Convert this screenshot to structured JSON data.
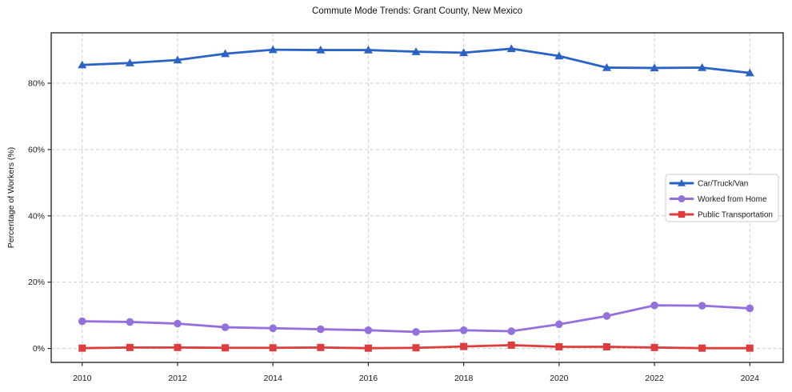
{
  "page": {
    "title": "Commute Mode Trends: Grant County, New Mexico"
  },
  "chart_data": {
    "type": "line",
    "title": "Commute Mode Trends: Grant County, New Mexico",
    "xlabel": "",
    "ylabel": "Percentage of Workers (%)",
    "x": [
      2010,
      2011,
      2012,
      2013,
      2014,
      2015,
      2016,
      2017,
      2018,
      2019,
      2020,
      2021,
      2022,
      2023,
      2024
    ],
    "x_tick_labels": [
      "2010",
      "2012",
      "2014",
      "2016",
      "2018",
      "2020",
      "2022",
      "2024"
    ],
    "y_ticks": [
      0,
      20,
      40,
      60,
      80
    ],
    "y_tick_suffix": "%",
    "xlim": [
      2009.35,
      2024.7
    ],
    "ylim": [
      -4.2,
      95.2
    ],
    "grid": "dashed, both axes",
    "grid_color": "#cdcdcd",
    "spine_color": "#1a1a1a",
    "legend_position": "center-right",
    "series": [
      {
        "name": "Car/Truck/Van",
        "color": "#2a62c6",
        "marker": "triangle",
        "values": [
          85.5,
          86.1,
          87.0,
          88.9,
          90.1,
          90.0,
          90.0,
          89.5,
          89.2,
          90.4,
          88.2,
          84.7,
          84.6,
          84.7,
          83.1
        ]
      },
      {
        "name": "Worked from Home",
        "color": "#9370db",
        "marker": "circle",
        "values": [
          8.2,
          8.0,
          7.5,
          6.4,
          6.1,
          5.8,
          5.5,
          5.0,
          5.5,
          5.2,
          7.3,
          9.8,
          13.0,
          12.9,
          12.1
        ]
      },
      {
        "name": "Public Transportation",
        "color": "#dd3d3d",
        "marker": "square",
        "values": [
          0.1,
          0.3,
          0.3,
          0.2,
          0.2,
          0.3,
          0.1,
          0.2,
          0.6,
          1.0,
          0.5,
          0.5,
          0.3,
          0.1,
          0.1
        ]
      }
    ]
  }
}
